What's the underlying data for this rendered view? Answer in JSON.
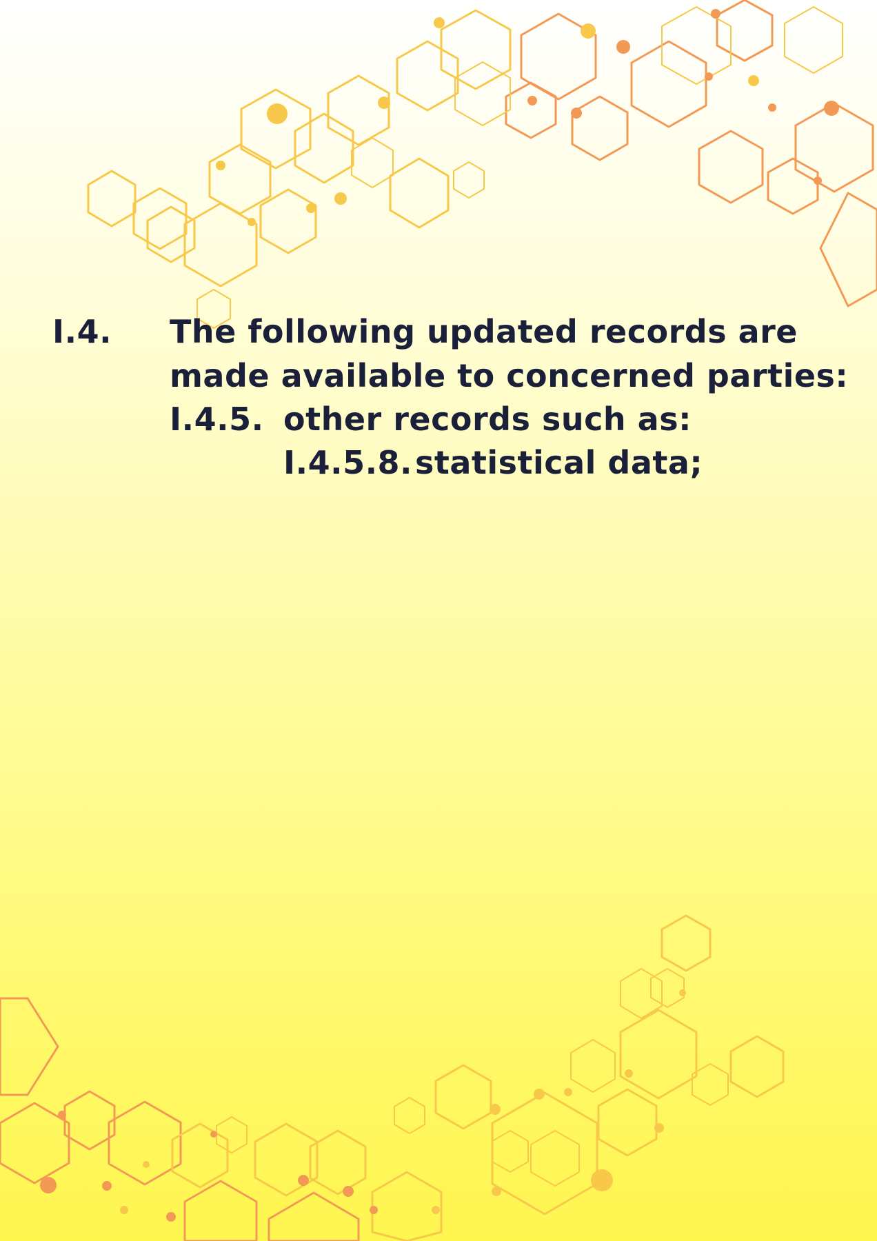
{
  "clause": {
    "number": "I.4.",
    "line1": "The following updated records are",
    "line2": "made available to concerned parties:",
    "sub_number": "I.4.5.",
    "sub_text": "other records such as:",
    "subsub_number": "I.4.5.8.",
    "subsub_text": "statistical data;"
  },
  "colors": {
    "text": "#1a1f3a",
    "hex_yellow": "#f8c84a",
    "hex_orange": "#f29a55"
  }
}
